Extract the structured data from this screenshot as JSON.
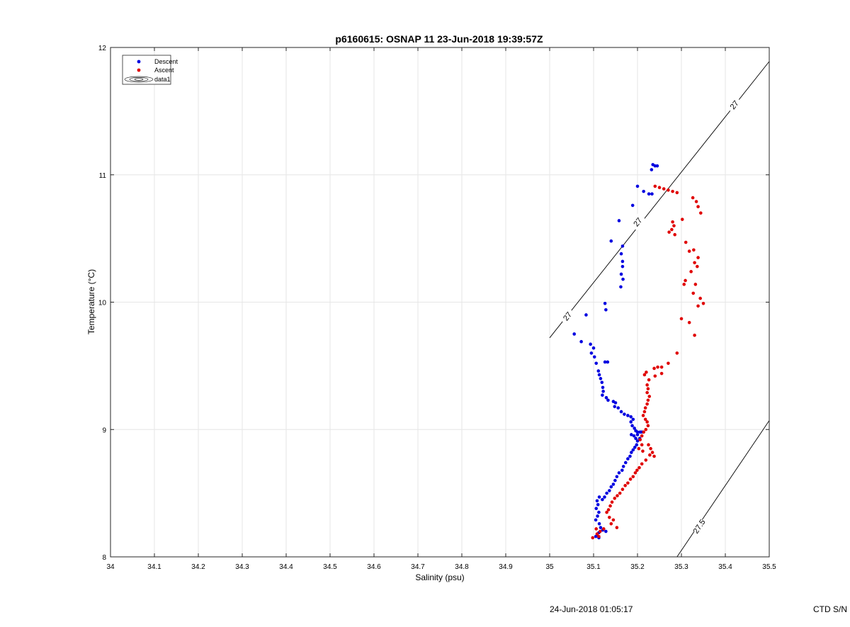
{
  "chart_data": {
    "type": "scatter",
    "title": "p6160615: OSNAP 11 23-Jun-2018 19:39:57Z",
    "xlabel": "Salinity (psu)",
    "ylabel": "Temperature (°C)",
    "xlim": [
      34,
      35.5
    ],
    "ylim": [
      8,
      12
    ],
    "xticks": [
      34,
      34.1,
      34.2,
      34.3,
      34.4,
      34.5,
      34.6,
      34.7,
      34.8,
      34.9,
      35,
      35.1,
      35.2,
      35.3,
      35.4,
      35.5
    ],
    "xtick_labels": [
      "34",
      "34.1",
      "34.2",
      "34.3",
      "34.4",
      "34.5",
      "34.6",
      "34.7",
      "34.8",
      "34.9",
      "35",
      "35.1",
      "35.2",
      "35.3",
      "35.4",
      "35.5"
    ],
    "yticks": [
      8,
      9,
      10,
      11,
      12
    ],
    "ytick_labels": [
      "8",
      "9",
      "10",
      "11",
      "12"
    ],
    "grid": true,
    "legend_position": "top-left",
    "legend": [
      {
        "label": "Descent",
        "marker": "dot",
        "color": "#0000e0"
      },
      {
        "label": "Ascent",
        "marker": "dot",
        "color": "#e00000"
      },
      {
        "label": "data1",
        "marker": "contour"
      }
    ],
    "series": [
      {
        "name": "Descent",
        "color": "#0000e0",
        "points": [
          [
            35.235,
            11.08
          ],
          [
            35.24,
            11.07
          ],
          [
            35.245,
            11.07
          ],
          [
            35.232,
            11.04
          ],
          [
            35.2,
            10.91
          ],
          [
            35.214,
            10.87
          ],
          [
            35.226,
            10.85
          ],
          [
            35.233,
            10.85
          ],
          [
            35.189,
            10.76
          ],
          [
            35.158,
            10.64
          ],
          [
            35.14,
            10.48
          ],
          [
            35.166,
            10.44
          ],
          [
            35.163,
            10.38
          ],
          [
            35.166,
            10.32
          ],
          [
            35.166,
            10.28
          ],
          [
            35.163,
            10.22
          ],
          [
            35.167,
            10.18
          ],
          [
            35.162,
            10.12
          ],
          [
            35.126,
            9.99
          ],
          [
            35.128,
            9.94
          ],
          [
            35.083,
            9.9
          ],
          [
            35.056,
            9.75
          ],
          [
            35.072,
            9.69
          ],
          [
            35.093,
            9.67
          ],
          [
            35.1,
            9.64
          ],
          [
            35.095,
            9.6
          ],
          [
            35.102,
            9.57
          ],
          [
            35.106,
            9.52
          ],
          [
            35.126,
            9.53
          ],
          [
            35.132,
            9.53
          ],
          [
            35.111,
            9.46
          ],
          [
            35.113,
            9.43
          ],
          [
            35.116,
            9.4
          ],
          [
            35.119,
            9.37
          ],
          [
            35.121,
            9.33
          ],
          [
            35.122,
            9.3
          ],
          [
            35.12,
            9.27
          ],
          [
            35.129,
            9.25
          ],
          [
            35.133,
            9.23
          ],
          [
            35.145,
            9.22
          ],
          [
            35.15,
            9.21
          ],
          [
            35.148,
            9.18
          ],
          [
            35.156,
            9.17
          ],
          [
            35.163,
            9.14
          ],
          [
            35.17,
            9.12
          ],
          [
            35.178,
            9.11
          ],
          [
            35.185,
            9.1
          ],
          [
            35.19,
            9.08
          ],
          [
            35.185,
            9.06
          ],
          [
            35.188,
            9.03
          ],
          [
            35.193,
            9.01
          ],
          [
            35.196,
            8.99
          ],
          [
            35.2,
            8.98
          ],
          [
            35.206,
            8.98
          ],
          [
            35.21,
            8.98
          ],
          [
            35.2,
            8.96
          ],
          [
            35.192,
            8.95
          ],
          [
            35.186,
            8.96
          ],
          [
            35.196,
            8.93
          ],
          [
            35.205,
            8.93
          ],
          [
            35.2,
            8.91
          ],
          [
            35.198,
            8.88
          ],
          [
            35.194,
            8.86
          ],
          [
            35.19,
            8.84
          ],
          [
            35.186,
            8.82
          ],
          [
            35.183,
            8.79
          ],
          [
            35.178,
            8.77
          ],
          [
            35.173,
            8.74
          ],
          [
            35.168,
            8.71
          ],
          [
            35.165,
            8.68
          ],
          [
            35.158,
            8.66
          ],
          [
            35.153,
            8.63
          ],
          [
            35.149,
            8.6
          ],
          [
            35.145,
            8.57
          ],
          [
            35.14,
            8.55
          ],
          [
            35.136,
            8.52
          ],
          [
            35.13,
            8.5
          ],
          [
            35.125,
            8.47
          ],
          [
            35.12,
            8.45
          ],
          [
            35.113,
            8.47
          ],
          [
            35.108,
            8.44
          ],
          [
            35.11,
            8.41
          ],
          [
            35.106,
            8.38
          ],
          [
            35.112,
            8.35
          ],
          [
            35.109,
            8.32
          ],
          [
            35.105,
            8.29
          ],
          [
            35.113,
            8.26
          ],
          [
            35.116,
            8.23
          ],
          [
            35.121,
            8.21
          ],
          [
            35.128,
            8.2
          ],
          [
            35.112,
            8.19
          ],
          [
            35.108,
            8.17
          ],
          [
            35.112,
            8.15
          ],
          [
            35.105,
            8.16
          ]
        ]
      },
      {
        "name": "Ascent",
        "color": "#e00000",
        "points": [
          [
            35.24,
            10.91
          ],
          [
            35.25,
            10.9
          ],
          [
            35.26,
            10.89
          ],
          [
            35.27,
            10.88
          ],
          [
            35.28,
            10.87
          ],
          [
            35.29,
            10.86
          ],
          [
            35.326,
            10.82
          ],
          [
            35.334,
            10.79
          ],
          [
            35.338,
            10.75
          ],
          [
            35.344,
            10.7
          ],
          [
            35.302,
            10.65
          ],
          [
            35.28,
            10.63
          ],
          [
            35.283,
            10.6
          ],
          [
            35.278,
            10.57
          ],
          [
            35.272,
            10.55
          ],
          [
            35.285,
            10.53
          ],
          [
            35.31,
            10.47
          ],
          [
            35.328,
            10.41
          ],
          [
            35.318,
            10.4
          ],
          [
            35.338,
            10.35
          ],
          [
            35.33,
            10.31
          ],
          [
            35.336,
            10.28
          ],
          [
            35.322,
            10.24
          ],
          [
            35.309,
            10.17
          ],
          [
            35.306,
            10.14
          ],
          [
            35.332,
            10.14
          ],
          [
            35.327,
            10.07
          ],
          [
            35.343,
            10.03
          ],
          [
            35.35,
            9.99
          ],
          [
            35.338,
            9.97
          ],
          [
            35.3,
            9.87
          ],
          [
            35.318,
            9.84
          ],
          [
            35.33,
            9.74
          ],
          [
            35.29,
            9.6
          ],
          [
            35.27,
            9.52
          ],
          [
            35.255,
            9.49
          ],
          [
            35.246,
            9.49
          ],
          [
            35.238,
            9.48
          ],
          [
            35.255,
            9.44
          ],
          [
            35.22,
            9.45
          ],
          [
            35.216,
            9.43
          ],
          [
            35.24,
            9.42
          ],
          [
            35.226,
            9.39
          ],
          [
            35.222,
            9.35
          ],
          [
            35.224,
            9.32
          ],
          [
            35.222,
            9.29
          ],
          [
            35.227,
            9.26
          ],
          [
            35.224,
            9.23
          ],
          [
            35.222,
            9.2
          ],
          [
            35.218,
            9.17
          ],
          [
            35.216,
            9.14
          ],
          [
            35.213,
            9.11
          ],
          [
            35.218,
            9.08
          ],
          [
            35.222,
            9.06
          ],
          [
            35.224,
            9.03
          ],
          [
            35.219,
            9.0
          ],
          [
            35.214,
            8.98
          ],
          [
            35.21,
            8.95
          ],
          [
            35.206,
            8.92
          ],
          [
            35.21,
            8.88
          ],
          [
            35.203,
            8.85
          ],
          [
            35.212,
            8.83
          ],
          [
            35.225,
            8.88
          ],
          [
            35.23,
            8.85
          ],
          [
            35.234,
            8.82
          ],
          [
            35.228,
            8.8
          ],
          [
            35.238,
            8.79
          ],
          [
            35.219,
            8.76
          ],
          [
            35.21,
            8.73
          ],
          [
            35.204,
            8.7
          ],
          [
            35.199,
            8.68
          ],
          [
            35.195,
            8.66
          ],
          [
            35.19,
            8.63
          ],
          [
            35.184,
            8.61
          ],
          [
            35.178,
            8.58
          ],
          [
            35.172,
            8.56
          ],
          [
            35.166,
            8.53
          ],
          [
            35.16,
            8.5
          ],
          [
            35.154,
            8.48
          ],
          [
            35.148,
            8.46
          ],
          [
            35.142,
            8.43
          ],
          [
            35.138,
            8.4
          ],
          [
            35.134,
            8.37
          ],
          [
            35.13,
            8.35
          ],
          [
            35.136,
            8.31
          ],
          [
            35.145,
            8.29
          ],
          [
            35.14,
            8.26
          ],
          [
            35.153,
            8.23
          ],
          [
            35.123,
            8.22
          ],
          [
            35.115,
            8.2
          ],
          [
            35.106,
            8.22
          ],
          [
            35.108,
            8.18
          ],
          [
            35.098,
            8.15
          ],
          [
            35.112,
            8.16
          ]
        ]
      }
    ],
    "isopycnals": [
      {
        "label": "27",
        "line": [
          [
            35.0,
            9.72
          ],
          [
            35.5,
            11.89
          ]
        ],
        "labels_at": [
          [
            35.04,
            9.89
          ],
          [
            35.2,
            10.63
          ],
          [
            35.42,
            11.55
          ]
        ]
      },
      {
        "label": "27.5",
        "line": [
          [
            35.29,
            8.0
          ],
          [
            35.5,
            9.07
          ]
        ],
        "labels_at": [
          [
            35.34,
            8.24
          ]
        ]
      }
    ],
    "footer": {
      "timestamp": "24-Jun-2018 01:05:17",
      "right": "CTD S/N"
    }
  }
}
